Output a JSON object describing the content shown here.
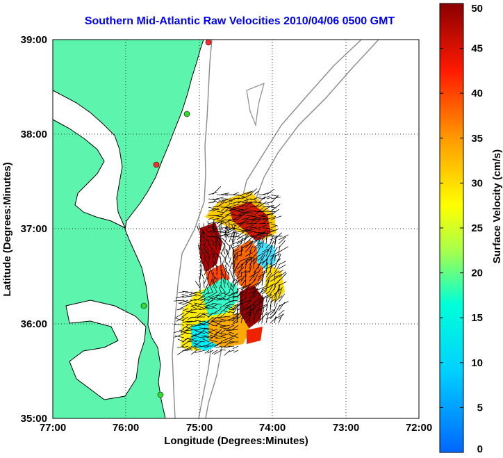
{
  "title": "Southern Mid-Atlantic Raw Velocities 2010/04/06 0500 GMT",
  "xaxis": {
    "label": "Longitude (Degrees:Minutes)",
    "ticks": [
      "77:00",
      "76:00",
      "75:00",
      "74:00",
      "73:00",
      "72:00"
    ]
  },
  "yaxis": {
    "label": "Latitude (Degrees:Minutes)",
    "ticks": [
      "39:00",
      "38:00",
      "37:00",
      "36:00",
      "35:00"
    ]
  },
  "colorbar": {
    "label": "Surface Velocity (cm/s)",
    "ticks": [
      "50",
      "45",
      "40",
      "35",
      "30",
      "25",
      "20",
      "15",
      "10",
      "5",
      "0"
    ],
    "min": 0,
    "max": 50
  },
  "colors": {
    "title": "#0000ff",
    "land": "#5df5ae",
    "bathymetry": "#8a8a8a",
    "grid": "#000000"
  },
  "stations": [
    {
      "color": "#ff2a2a"
    },
    {
      "color": "#33dd33"
    },
    {
      "color": "#ff2a2a"
    },
    {
      "color": "#33dd33"
    },
    {
      "color": "#33dd33"
    }
  ]
}
